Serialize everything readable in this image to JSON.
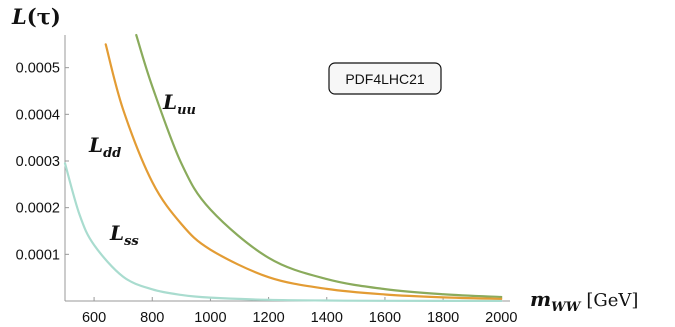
{
  "chart_data": {
    "type": "line",
    "title": "",
    "ylabel": "L(τ)",
    "ylabel_parts": {
      "main": "L",
      "arg": "(τ)"
    },
    "xlabel": "m_WW [GeV]",
    "xlabel_parts": {
      "var": "m",
      "sub": "WW",
      "unit": "[GeV]"
    },
    "xlim": [
      500,
      2030
    ],
    "ylim": [
      0,
      0.00057
    ],
    "xticks": [
      600,
      800,
      1000,
      1200,
      1400,
      1600,
      1800,
      2000
    ],
    "xtick_labels": [
      "600",
      "800",
      "1000",
      "1200",
      "1400",
      "1600",
      "1800",
      "2000"
    ],
    "yticks": [
      0.0001,
      0.0002,
      0.0003,
      0.0004,
      0.0005
    ],
    "ytick_labels": [
      "0.0001",
      "0.0002",
      "0.0003",
      "0.0004",
      "0.0005"
    ],
    "grid": false,
    "legend_box": "PDF4LHC21",
    "legend_placement": "top-right",
    "series": [
      {
        "name": "L_uu",
        "label_main": "L",
        "label_sub": "uu",
        "color": "#8aab5c",
        "x": [
          745,
          800,
          900,
          1000,
          1200,
          1400,
          1600,
          1800,
          2000
        ],
        "y": [
          0.00057,
          0.00046,
          0.000295,
          0.000196,
          9.25e-05,
          4.7e-05,
          2.55e-05,
          1.45e-05,
          8.5e-06
        ]
      },
      {
        "name": "L_dd",
        "label_main": "L",
        "label_sub": "dd",
        "color": "#e39c34",
        "x": [
          640,
          700,
          800,
          900,
          1000,
          1200,
          1400,
          1600,
          1800,
          2000
        ],
        "y": [
          0.00055,
          0.00041,
          0.000255,
          0.000165,
          0.00011,
          5.1e-05,
          2.6e-05,
          1.4e-05,
          7.8e-06,
          4.5e-06
        ]
      },
      {
        "name": "L_ss",
        "label_main": "L",
        "label_sub": "ss",
        "color": "#a9dccf",
        "x": [
          500,
          550,
          600,
          700,
          800,
          900,
          1000,
          1200,
          1400,
          1600,
          2000
        ],
        "y": [
          0.000295,
          0.000185,
          0.00012,
          5.2e-05,
          2.5e-05,
          1.3e-05,
          7.2e-06,
          2.5e-06,
          1e-06,
          4e-07,
          1e-07
        ]
      }
    ]
  }
}
